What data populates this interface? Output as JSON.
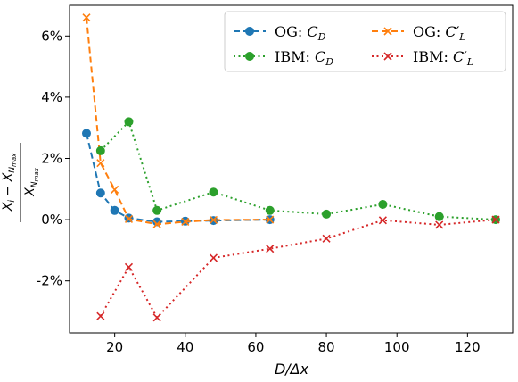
{
  "chart_data": {
    "type": "line",
    "xlabel": "D/Δx",
    "ylabel": "(X_i − X_Nmax) / X_Nmax",
    "xlim": [
      7.2,
      132.8
    ],
    "ylim": [
      -3.7,
      7.0
    ],
    "xticks": [
      20,
      40,
      60,
      80,
      100,
      120
    ],
    "yticks": [
      -2,
      0,
      2,
      4,
      6
    ],
    "ytick_labels": [
      "-2%",
      "0%",
      "2%",
      "4%",
      "6%"
    ],
    "grid": false,
    "legend_position": "top-right",
    "series": [
      {
        "name": "OG: C_D",
        "label_main": "OG: ",
        "label_var": "C",
        "label_sub": "D",
        "color": "#1f77b4",
        "linestyle": "dashed",
        "marker": "circle",
        "x": [
          12,
          16,
          20,
          24,
          32,
          40,
          48,
          64
        ],
        "y": [
          2.82,
          0.87,
          0.3,
          0.05,
          -0.07,
          -0.05,
          -0.03,
          0.0
        ]
      },
      {
        "name": "OG: C'_L",
        "label_main": "OG: ",
        "label_var": "C′",
        "label_sub": "L",
        "color": "#ff7f0e",
        "linestyle": "dashed",
        "marker": "x",
        "x": [
          12,
          16,
          20,
          24,
          32,
          40,
          48,
          64
        ],
        "y": [
          6.6,
          1.85,
          0.98,
          0.02,
          -0.15,
          -0.07,
          -0.01,
          0.0
        ]
      },
      {
        "name": "IBM: C_D",
        "label_main": "IBM: ",
        "label_var": "C",
        "label_sub": "D",
        "color": "#2ca02c",
        "linestyle": "dotted",
        "marker": "circle",
        "x": [
          16,
          24,
          32,
          48,
          64,
          80,
          96,
          112,
          128
        ],
        "y": [
          2.25,
          3.2,
          0.3,
          0.9,
          0.3,
          0.18,
          0.5,
          0.1,
          0.0
        ]
      },
      {
        "name": "IBM: C'_L",
        "label_main": "IBM: ",
        "label_var": "C′",
        "label_sub": "L",
        "color": "#d62728",
        "linestyle": "dotted",
        "marker": "x",
        "x": [
          16,
          24,
          32,
          48,
          64,
          80,
          96,
          112,
          128
        ],
        "y": [
          -3.15,
          -1.55,
          -3.2,
          -1.25,
          -0.95,
          -0.62,
          -0.02,
          -0.17,
          0.0
        ]
      }
    ]
  }
}
